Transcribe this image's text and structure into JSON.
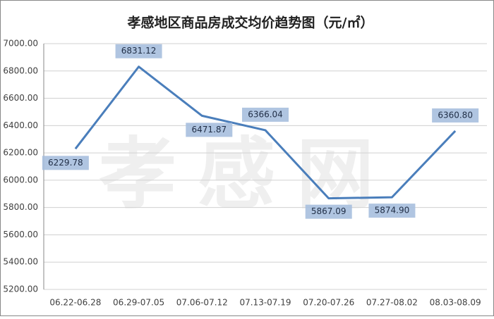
{
  "chart_data": {
    "type": "line",
    "title": "孝感地区商品房成交均价趋势图（元/㎡）",
    "watermark": "孝感网",
    "categories": [
      "06.22-06.28",
      "06.29-07.05",
      "07.06-07.12",
      "07.13-07.19",
      "07.20-07.26",
      "07.27-08.02",
      "08.03-08.09"
    ],
    "values": [
      6229.78,
      6831.12,
      6471.87,
      6366.04,
      5867.09,
      5874.9,
      6360.8
    ],
    "value_labels": [
      "6229.78",
      "6831.12",
      "6471.87",
      "6366.04",
      "5867.09",
      "5874.90",
      "6360.80"
    ],
    "color": "#4a7ebb",
    "ylim": [
      5200,
      7000
    ],
    "yticks": [
      {
        "value": 5200,
        "label": "5200.00"
      },
      {
        "value": 5400,
        "label": "5400.00"
      },
      {
        "value": 5600,
        "label": "5600.00"
      },
      {
        "value": 5800,
        "label": "5800.00"
      },
      {
        "value": 6000,
        "label": "6000.00"
      },
      {
        "value": 6200,
        "label": "6200.00"
      },
      {
        "value": 6400,
        "label": "6400.00"
      },
      {
        "value": 6600,
        "label": "6600.00"
      },
      {
        "value": 6800,
        "label": "6800.00"
      },
      {
        "value": 7000,
        "label": "7000.00"
      }
    ],
    "grid": true
  }
}
